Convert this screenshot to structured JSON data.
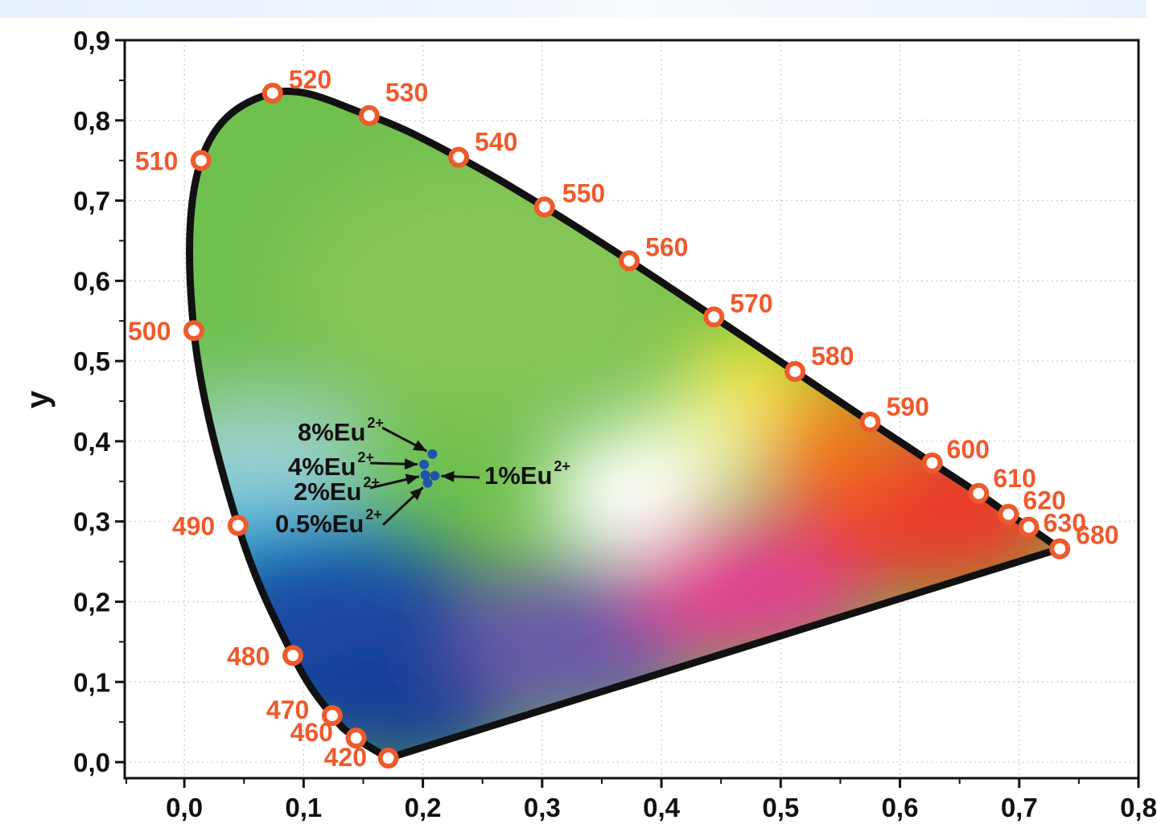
{
  "chart_data": {
    "type": "scatter",
    "title": "",
    "xlabel": "",
    "ylabel": "y",
    "xlim": [
      -0.05,
      0.8
    ],
    "ylim": [
      -0.02,
      0.9
    ],
    "grid": true,
    "x_ticks": [
      "0,0",
      "0,1",
      "0,2",
      "0,3",
      "0,4",
      "0,5",
      "0,6",
      "0,7",
      "0,8"
    ],
    "y_ticks": [
      "0,0",
      "0,1",
      "0,2",
      "0,3",
      "0,4",
      "0,5",
      "0,6",
      "0,7",
      "0,8",
      "0,9"
    ],
    "locus": [
      {
        "label": "420",
        "x": 0.171,
        "y": 0.005
      },
      {
        "label": "460",
        "x": 0.144,
        "y": 0.03
      },
      {
        "label": "470",
        "x": 0.124,
        "y": 0.058
      },
      {
        "label": "480",
        "x": 0.091,
        "y": 0.133
      },
      {
        "label": "490",
        "x": 0.045,
        "y": 0.295
      },
      {
        "label": "500",
        "x": 0.008,
        "y": 0.538
      },
      {
        "label": "510",
        "x": 0.014,
        "y": 0.75
      },
      {
        "label": "520",
        "x": 0.074,
        "y": 0.834
      },
      {
        "label": "530",
        "x": 0.155,
        "y": 0.806
      },
      {
        "label": "540",
        "x": 0.23,
        "y": 0.754
      },
      {
        "label": "550",
        "x": 0.302,
        "y": 0.692
      },
      {
        "label": "560",
        "x": 0.373,
        "y": 0.625
      },
      {
        "label": "570",
        "x": 0.444,
        "y": 0.555
      },
      {
        "label": "580",
        "x": 0.512,
        "y": 0.487
      },
      {
        "label": "590",
        "x": 0.575,
        "y": 0.424
      },
      {
        "label": "600",
        "x": 0.627,
        "y": 0.373
      },
      {
        "label": "610",
        "x": 0.666,
        "y": 0.335
      },
      {
        "label": "620",
        "x": 0.691,
        "y": 0.309
      },
      {
        "label": "630",
        "x": 0.708,
        "y": 0.293
      },
      {
        "label": "680",
        "x": 0.734,
        "y": 0.266
      }
    ],
    "samples": [
      {
        "label": "8%Eu",
        "sup": "2+",
        "x": 0.208,
        "y": 0.384
      },
      {
        "label": "4%Eu",
        "sup": "2+",
        "x": 0.201,
        "y": 0.371
      },
      {
        "label": "2%Eu",
        "sup": "2+",
        "x": 0.202,
        "y": 0.358
      },
      {
        "label": "1%Eu",
        "sup": "2+",
        "x": 0.21,
        "y": 0.357
      },
      {
        "label": "0.5%Eu",
        "sup": "2+",
        "x": 0.204,
        "y": 0.348
      }
    ],
    "colors": {
      "locus_marker": "#ee5a2c",
      "locus_label": "#ee5a2c",
      "sample_point": "#1f55a8",
      "outline": "#111111"
    }
  }
}
